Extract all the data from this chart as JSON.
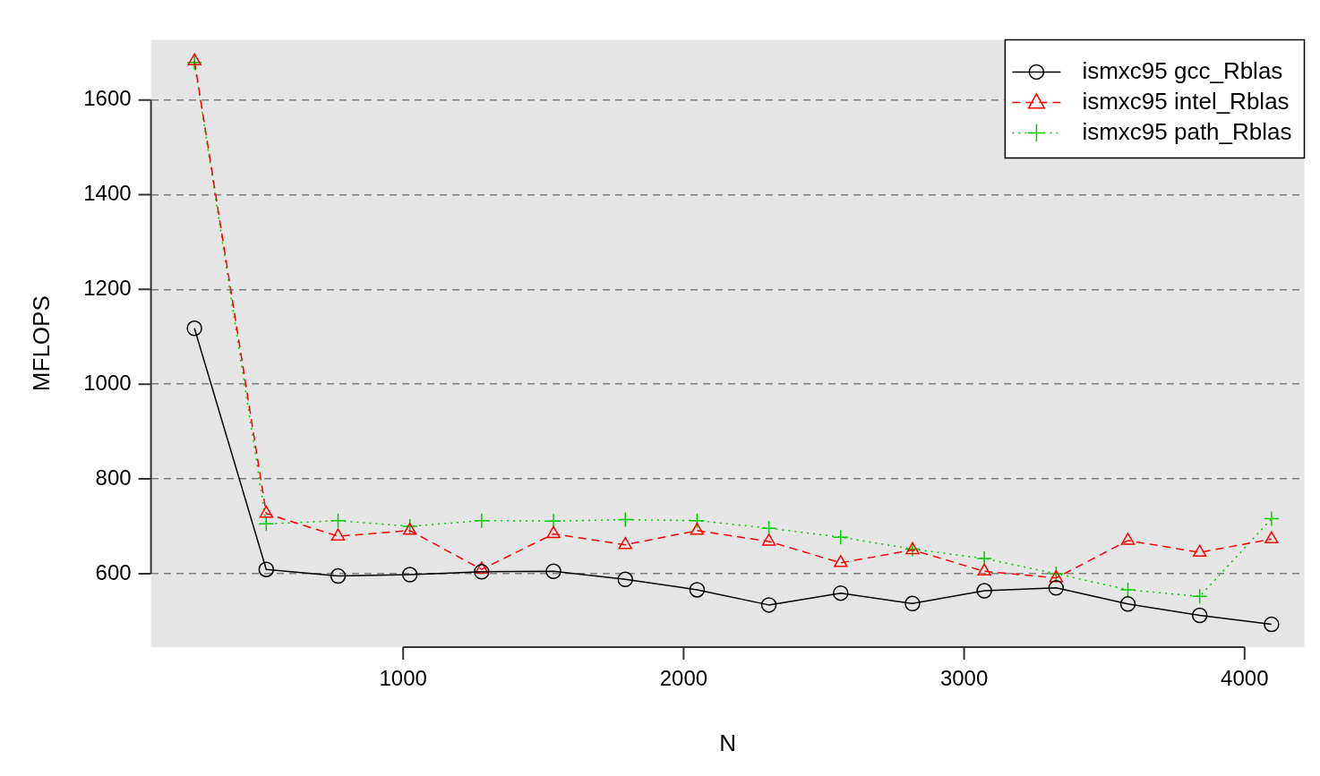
{
  "chart_data": {
    "type": "line",
    "xlabel": "N",
    "ylabel": "MFLOPS",
    "x": [
      256,
      512,
      768,
      1024,
      1280,
      1536,
      1792,
      2048,
      2304,
      2560,
      2816,
      3072,
      3328,
      3584,
      3840,
      4096
    ],
    "series": [
      {
        "name": "ismxc95 gcc_Rblas",
        "color": "#000000",
        "marker": "circle",
        "line_style": "solid",
        "values": [
          1118,
          609,
          595,
          598,
          604,
          605,
          588,
          566,
          534,
          559,
          537,
          564,
          570,
          536,
          512,
          493
        ]
      },
      {
        "name": "ismxc95 intel_Rblas",
        "color": "#ff0000",
        "marker": "triangle",
        "line_style": "dashed",
        "values": [
          1682,
          727,
          679,
          691,
          609,
          684,
          661,
          691,
          668,
          623,
          650,
          605,
          591,
          670,
          645,
          673
        ]
      },
      {
        "name": "ismxc95 path_Rblas",
        "color": "#00cd00",
        "marker": "cross",
        "line_style": "dotted",
        "values": [
          1679,
          705,
          712,
          700,
          712,
          711,
          714,
          712,
          696,
          677,
          652,
          632,
          600,
          566,
          552,
          716
        ]
      }
    ],
    "xlim": [
      101,
      4213
    ],
    "ylim": [
      445,
      1727
    ],
    "xticks": [
      1000,
      2000,
      3000,
      4000
    ],
    "yticks": [
      600,
      800,
      1000,
      1200,
      1400,
      1600
    ],
    "grid": "y",
    "legend": "top right"
  }
}
